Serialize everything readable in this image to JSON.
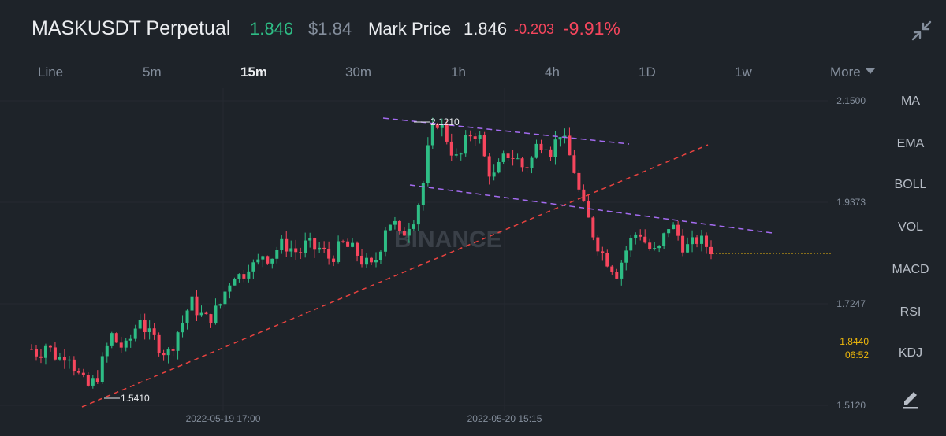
{
  "header": {
    "symbol": "MASKUSDT Perpetual",
    "last_price": "1.846",
    "usd_price": "$1.84",
    "mark_price_label": "Mark Price",
    "mark_price": "1.846",
    "change_abs": "-0.203",
    "change_pct": "-9.91%"
  },
  "intervals": [
    {
      "label": "Line",
      "active": false
    },
    {
      "label": "5m",
      "active": false
    },
    {
      "label": "15m",
      "active": true
    },
    {
      "label": "30m",
      "active": false
    },
    {
      "label": "1h",
      "active": false
    },
    {
      "label": "4h",
      "active": false
    },
    {
      "label": "1D",
      "active": false
    },
    {
      "label": "1w",
      "active": false
    },
    {
      "label": "More",
      "active": false
    }
  ],
  "indicators": [
    "MA",
    "EMA",
    "BOLL",
    "VOL",
    "MACD",
    "RSI",
    "KDJ"
  ],
  "chart": {
    "watermark": "BINANCE",
    "y_ticks": [
      "2.1500",
      "1.9373",
      "1.7247",
      "1.5120"
    ],
    "x_ticks": [
      "2022-05-19 17:00",
      "2022-05-20 15:15"
    ],
    "high_label": "2.1210",
    "low_label": "1.5410",
    "current_price": "1.8440",
    "countdown": "06:52"
  },
  "chart_data": {
    "type": "candlestick",
    "y_range": [
      1.512,
      2.15
    ],
    "y_ticks": [
      2.15,
      1.9373,
      1.7247,
      1.512
    ],
    "x_ticks": [
      "2022-05-19 17:00",
      "2022-05-20 15:15"
    ],
    "high_marker": 2.121,
    "low_marker": 1.541,
    "last": 1.844,
    "close_path": [
      1.63,
      1.62,
      1.64,
      1.62,
      1.61,
      1.63,
      1.59,
      1.56,
      1.55,
      1.57,
      1.61,
      1.66,
      1.64,
      1.63,
      1.66,
      1.7,
      1.66,
      1.65,
      1.63,
      1.62,
      1.66,
      1.69,
      1.73,
      1.71,
      1.69,
      1.7,
      1.72,
      1.76,
      1.79,
      1.78,
      1.81,
      1.8,
      1.83,
      1.82,
      1.84,
      1.85,
      1.84,
      1.83,
      1.85,
      1.84,
      1.84,
      1.82,
      1.83,
      1.85,
      1.84,
      1.83,
      1.81,
      1.8,
      1.83,
      1.89,
      1.9,
      1.86,
      1.89,
      1.91,
      1.96,
      2.06,
      2.11,
      2.09,
      2.05,
      2.02,
      2.06,
      2.09,
      2.07,
      2.01,
      1.99,
      2.02,
      2.04,
      2.03,
      2.01,
      2.02,
      2.06,
      2.07,
      2.04,
      2.09,
      2.05,
      2.01,
      1.94,
      1.9,
      1.86,
      1.83,
      1.81,
      1.79,
      1.83,
      1.86,
      1.88,
      1.85,
      1.83,
      1.84,
      1.89,
      1.88,
      1.85,
      1.84,
      1.86,
      1.85,
      1.84
    ],
    "candles_omitted_note": "",
    "lines": [
      {
        "style": "dashed",
        "color": "#e8423f",
        "kind": "support"
      },
      {
        "style": "dashed",
        "color": "#a46bf0",
        "kind": "channel-upper"
      },
      {
        "style": "dashed",
        "color": "#a46bf0",
        "kind": "channel-lower"
      }
    ]
  },
  "colors": {
    "up": "#2ebd85",
    "down": "#f6465d",
    "background": "#1e2329",
    "accent": "#f0b90b"
  },
  "icons": {
    "collapse": "collapse-icon",
    "edit": "edit-icon"
  }
}
